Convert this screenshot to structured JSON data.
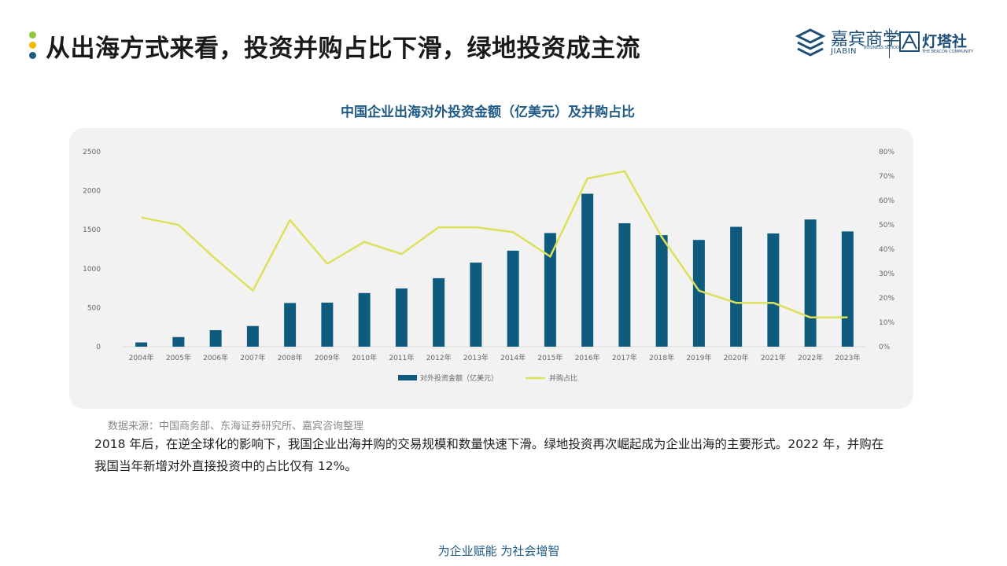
{
  "header": {
    "title": "从出海方式来看，投资并购占比下滑，绿地投资成主流",
    "dot_colors": [
      "#8dc63f",
      "#f5b800",
      "#1f5c82"
    ]
  },
  "logo": {
    "jiabin_cn": "嘉宾商学",
    "jiabin_en": "JIABIN",
    "jiabin_en_small": "BUSINESS SCHOOL",
    "dengta_cn": "灯塔社",
    "dengta_en": "THE BEACON COMMUNITY"
  },
  "chart_data": {
    "type": "bar",
    "title": "中国企业出海对外投资金额（亿美元）及并购占比",
    "categories": [
      "2004年",
      "2005年",
      "2006年",
      "2007年",
      "2008年",
      "2009年",
      "2010年",
      "2011年",
      "2012年",
      "2013年",
      "2014年",
      "2015年",
      "2016年",
      "2017年",
      "2018年",
      "2019年",
      "2020年",
      "2021年",
      "2022年",
      "2023年"
    ],
    "series": [
      {
        "name": "对外投资金额（亿美元）",
        "type": "bar",
        "axis": "left",
        "color": "#0e5b7e",
        "values": [
          55,
          123,
          212,
          265,
          560,
          565,
          688,
          747,
          878,
          1078,
          1231,
          1457,
          1961,
          1583,
          1430,
          1369,
          1537,
          1452,
          1631,
          1478
        ]
      },
      {
        "name": "并购占比",
        "type": "line",
        "axis": "right",
        "color": "#dce15c",
        "values": [
          53,
          50,
          36,
          23,
          52,
          34,
          43,
          38,
          49,
          49,
          47,
          37,
          69,
          72,
          45,
          23,
          18,
          18,
          12,
          12
        ]
      }
    ],
    "y_left": {
      "ylim": [
        0,
        2500
      ],
      "ticks": [
        "0",
        "500",
        "1000",
        "1500",
        "2000",
        "2500"
      ]
    },
    "y_right": {
      "ylim": [
        0,
        80
      ],
      "ticks": [
        "0%",
        "10%",
        "20%",
        "30%",
        "40%",
        "50%",
        "60%",
        "70%",
        "80%"
      ]
    },
    "grid": false,
    "legend_position": "bottom"
  },
  "source": "数据来源：中国商务部、东海证券研究所、嘉宾咨询整理",
  "body": "2018 年后，在逆全球化的影响下，我国企业出海并购的交易规模和数量快速下滑。绿地投资再次崛起成为企业出海的主要形式。2022 年，并购在我国当年新增对外直接投资中的占比仅有 12%。",
  "footer": "为企业赋能  为社会增智"
}
